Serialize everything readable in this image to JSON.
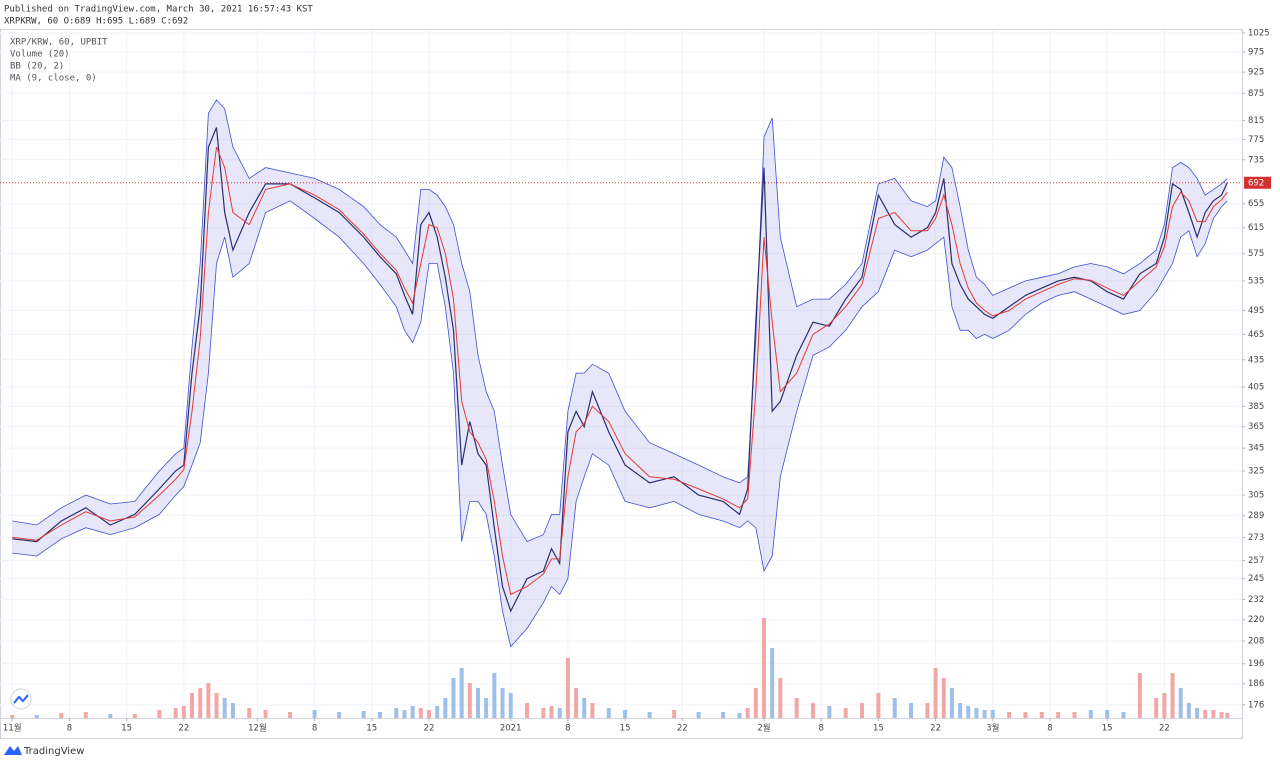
{
  "header": {
    "published": "Published on TradingView.com, March 30, 2021 16:57:43 KST",
    "symbol": "XRPKRW, 60 O:689 H:695 L:689 C:692"
  },
  "footer": {
    "brand": "TradingView"
  },
  "chart_data": {
    "type": "line",
    "log_scale": true,
    "grid": true,
    "xlim": [
      -1.5,
      150.5
    ],
    "ylim": [
      170,
      1033
    ],
    "xticks": [
      {
        "value": 0,
        "label": "11월"
      },
      {
        "value": 7,
        "label": "8"
      },
      {
        "value": 14,
        "label": "15"
      },
      {
        "value": 21,
        "label": "22"
      },
      {
        "value": 30,
        "label": "12월"
      },
      {
        "value": 37,
        "label": "8"
      },
      {
        "value": 44,
        "label": "15"
      },
      {
        "value": 51,
        "label": "22"
      },
      {
        "value": 61,
        "label": "2021"
      },
      {
        "value": 68,
        "label": "8"
      },
      {
        "value": 75,
        "label": "15"
      },
      {
        "value": 82,
        "label": "22"
      },
      {
        "value": 92,
        "label": "2월"
      },
      {
        "value": 99,
        "label": "8"
      },
      {
        "value": 106,
        "label": "15"
      },
      {
        "value": 113,
        "label": "22"
      },
      {
        "value": 120,
        "label": "3월"
      },
      {
        "value": 127,
        "label": "8"
      },
      {
        "value": 134,
        "label": "15"
      },
      {
        "value": 141,
        "label": "22"
      }
    ],
    "yticks": [
      1025,
      975,
      925,
      875,
      815,
      775,
      735,
      655,
      615,
      575,
      535,
      495,
      465,
      435,
      405,
      385,
      365,
      345,
      325,
      305,
      289,
      273,
      257,
      245,
      232,
      220,
      208,
      196,
      186,
      176
    ],
    "x": [
      0,
      3,
      6,
      9,
      12,
      15,
      18,
      20,
      21,
      22,
      23,
      24,
      25,
      26,
      27,
      29,
      31,
      34,
      37,
      40,
      43,
      45,
      47,
      48,
      49,
      50,
      51,
      52,
      53,
      54,
      55,
      56,
      57,
      58,
      59,
      60,
      61,
      63,
      65,
      66,
      67,
      68,
      69,
      70,
      71,
      73,
      75,
      78,
      81,
      84,
      87,
      89,
      90,
      91,
      92,
      93,
      94,
      96,
      98,
      100,
      102,
      104,
      106,
      108,
      110,
      112,
      113,
      114,
      115,
      116,
      117,
      118,
      119,
      120,
      122,
      124,
      126,
      128,
      130,
      132,
      134,
      136,
      138,
      140,
      141,
      142,
      143,
      144,
      145,
      146,
      147,
      148,
      148.7
    ],
    "series": [
      {
        "name": "XRP/KRW, 60, UPBIT",
        "color": "#2b2f6b",
        "values": [
          272,
          270,
          285,
          295,
          282,
          290,
          310,
          325,
          330,
          420,
          500,
          760,
          800,
          640,
          580,
          640,
          690,
          690,
          665,
          640,
          600,
          570,
          545,
          515,
          490,
          620,
          640,
          600,
          540,
          470,
          330,
          370,
          340,
          330,
          280,
          240,
          225,
          245,
          250,
          265,
          255,
          360,
          380,
          365,
          400,
          360,
          330,
          315,
          320,
          305,
          300,
          290,
          310,
          480,
          720,
          380,
          390,
          440,
          480,
          475,
          510,
          540,
          670,
          620,
          600,
          615,
          640,
          700,
          560,
          530,
          510,
          500,
          490,
          485,
          500,
          515,
          525,
          535,
          540,
          535,
          520,
          510,
          545,
          560,
          600,
          690,
          680,
          640,
          600,
          640,
          660,
          670,
          692
        ]
      },
      {
        "name": "MA (9, close, 0)",
        "color": "#e53935",
        "values": [
          273,
          271,
          282,
          292,
          285,
          288,
          305,
          318,
          326,
          380,
          460,
          640,
          760,
          720,
          640,
          620,
          680,
          690,
          670,
          645,
          605,
          575,
          550,
          525,
          505,
          560,
          620,
          615,
          575,
          510,
          390,
          360,
          350,
          335,
          300,
          260,
          235,
          240,
          248,
          258,
          258,
          320,
          360,
          368,
          385,
          370,
          340,
          320,
          318,
          310,
          302,
          295,
          302,
          400,
          600,
          480,
          400,
          420,
          465,
          478,
          500,
          530,
          630,
          640,
          610,
          610,
          630,
          670,
          620,
          560,
          525,
          505,
          495,
          488,
          495,
          510,
          520,
          530,
          538,
          536,
          525,
          515,
          535,
          555,
          585,
          650,
          675,
          660,
          625,
          625,
          650,
          662,
          675
        ]
      }
    ],
    "bollinger": {
      "name": "BB (20, 2)",
      "color": "#3f4fd0",
      "fill": "rgba(120,123,220,0.18)",
      "upper": [
        285,
        282,
        295,
        305,
        298,
        300,
        325,
        340,
        345,
        450,
        560,
        830,
        860,
        840,
        760,
        700,
        720,
        710,
        700,
        680,
        650,
        620,
        600,
        580,
        560,
        680,
        680,
        670,
        650,
        620,
        560,
        520,
        440,
        400,
        380,
        330,
        290,
        270,
        275,
        290,
        290,
        380,
        420,
        420,
        430,
        420,
        380,
        350,
        340,
        330,
        320,
        315,
        320,
        460,
        780,
        820,
        600,
        500,
        510,
        510,
        530,
        560,
        690,
        700,
        660,
        650,
        660,
        740,
        720,
        650,
        580,
        540,
        530,
        515,
        525,
        535,
        540,
        545,
        555,
        560,
        555,
        545,
        560,
        580,
        620,
        720,
        730,
        720,
        700,
        670,
        680,
        690,
        700
      ],
      "lower": [
        262,
        260,
        272,
        280,
        275,
        280,
        290,
        305,
        312,
        330,
        350,
        420,
        560,
        600,
        540,
        560,
        640,
        660,
        630,
        600,
        560,
        530,
        500,
        470,
        455,
        480,
        560,
        560,
        500,
        420,
        270,
        300,
        300,
        290,
        260,
        225,
        205,
        215,
        230,
        240,
        235,
        245,
        300,
        320,
        340,
        330,
        300,
        295,
        300,
        290,
        285,
        280,
        285,
        280,
        250,
        260,
        320,
        380,
        440,
        450,
        470,
        500,
        520,
        580,
        570,
        580,
        590,
        600,
        500,
        470,
        470,
        460,
        465,
        460,
        470,
        490,
        505,
        515,
        520,
        510,
        500,
        490,
        495,
        520,
        540,
        560,
        600,
        610,
        570,
        590,
        630,
        650,
        660
      ]
    },
    "volume": {
      "name": "Volume (20)",
      "up_color": "#f2a7a7",
      "down_color": "#9dbfe8",
      "values": [
        3,
        3,
        5,
        6,
        4,
        4,
        8,
        10,
        12,
        25,
        30,
        35,
        25,
        20,
        15,
        10,
        8,
        6,
        8,
        6,
        7,
        6,
        10,
        8,
        12,
        10,
        8,
        12,
        20,
        40,
        50,
        35,
        30,
        20,
        45,
        30,
        25,
        15,
        10,
        12,
        10,
        60,
        30,
        20,
        15,
        10,
        8,
        6,
        8,
        6,
        6,
        5,
        10,
        30,
        100,
        70,
        40,
        20,
        15,
        12,
        10,
        15,
        25,
        20,
        15,
        15,
        50,
        40,
        30,
        15,
        12,
        10,
        8,
        8,
        6,
        6,
        6,
        6,
        6,
        8,
        8,
        6,
        45,
        20,
        25,
        45,
        30,
        15,
        10,
        8,
        8,
        6,
        5
      ]
    },
    "last_price_color": "#d32f2f"
  }
}
